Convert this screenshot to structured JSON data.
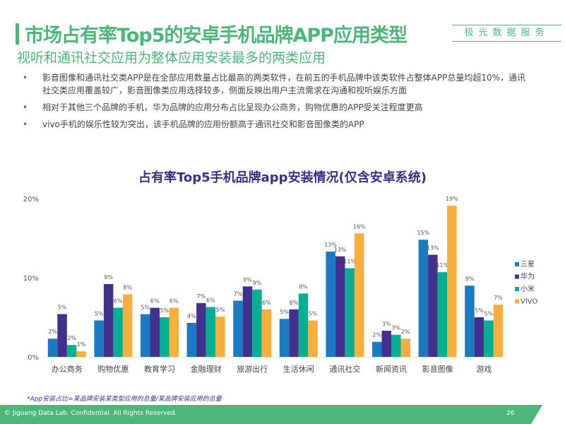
{
  "header": {
    "title": "市场占有率Top5的安卓手机品牌APP应用类型",
    "brand": "极光数据服务",
    "subtitle": "视听和通讯社交应用为整体应用安装最多的两类应用"
  },
  "bullets": [
    "影音图像和通讯社交类APP是在全部应用数量占比最高的两类软件，在前五的手机品牌中该类软件占整体APP总量均超10%，通讯社交类应用覆盖较广，影音图像类应用选择较多，侧面反映出用户主流需求在沟通和视听娱乐方面",
    "相对于其他三个品牌的手机，华为品牌的应用分布占比呈现办公商务，购物优惠的APP受关注程度更高",
    "vivo手机的娱乐性较为突出，该手机品牌的应用份额高于通讯社交和影音图像类的APP"
  ],
  "chart_data": {
    "type": "bar",
    "title": "占有率Top5手机品牌app安装情况(仅含安卓系统)",
    "xlabel": "",
    "ylabel": "",
    "ylim": [
      0,
      20
    ],
    "yticks": [
      "0%",
      "10%",
      "20%"
    ],
    "categories": [
      "办公商务",
      "购物优惠",
      "教育学习",
      "金融理财",
      "旅游出行",
      "生活休闲",
      "通讯社交",
      "新闻资讯",
      "影音图像",
      "游戏"
    ],
    "series": [
      {
        "name": "三星",
        "color": "#1a7bc4",
        "values": [
          2.3,
          4.6,
          5.4,
          4.3,
          7.1,
          4.8,
          13.3,
          1.9,
          14.8,
          9.0
        ]
      },
      {
        "name": "华为",
        "color": "#43308c",
        "values": [
          5.4,
          9.2,
          6.2,
          6.8,
          8.9,
          6.0,
          12.7,
          3.3,
          12.9,
          5.0
        ]
      },
      {
        "name": "小米",
        "color": "#00b092",
        "values": [
          1.5,
          6.2,
          5.0,
          6.3,
          8.5,
          8.0,
          11.2,
          2.8,
          10.7,
          4.6
        ]
      },
      {
        "name": "VIVO",
        "color": "#f9ae3b",
        "values": [
          0.7,
          7.9,
          6.2,
          5.1,
          6.0,
          4.6,
          15.6,
          2.3,
          19.1,
          6.6
        ]
      }
    ],
    "legend_position": "right",
    "grid": false,
    "note": "*App安装占比=某品牌安装某类型应用的总量/某品牌安装应用的总量"
  },
  "footer": {
    "copyright": "© Jiguang Data Lab. Confidential. All Rights Reserved.",
    "page": "26"
  },
  "colors": {
    "accent": "#4db77a"
  }
}
